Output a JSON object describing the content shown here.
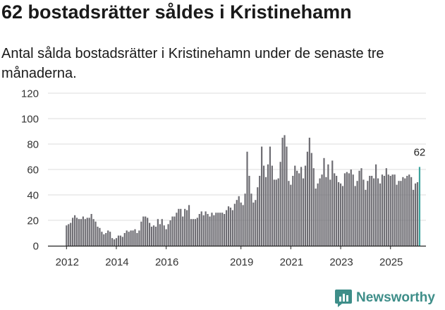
{
  "title": "62 bostadsrätter såldes i Kristinehamn",
  "subtitle": "Antal sålda bostadsrätter i Kristinehamn under de senaste tre månaderna.",
  "brand": {
    "name": "Newsworthy",
    "icon": "newsworthy-logo-icon",
    "color": "#3e8e89"
  },
  "chart_data": {
    "type": "bar",
    "title": "62 bostadsrätter såldes i Kristinehamn",
    "xlabel": "",
    "ylabel": "",
    "ylim": [
      0,
      120
    ],
    "yticks": [
      0,
      20,
      40,
      60,
      80,
      100,
      120
    ],
    "xtick_labels": [
      "2012",
      "2014",
      "2016",
      "2019",
      "2021",
      "2023",
      "2025"
    ],
    "x_start": "2012-01",
    "bar_color": "#6e6d73",
    "highlight_color": "#3ca39d",
    "highlight_label": "62",
    "grid": true,
    "values": [
      16,
      17,
      18,
      22,
      24,
      22,
      21,
      21,
      23,
      21,
      22,
      22,
      25,
      21,
      19,
      15,
      14,
      11,
      9,
      10,
      12,
      11,
      6,
      5,
      6,
      8,
      8,
      7,
      10,
      12,
      11,
      12,
      12,
      13,
      10,
      12,
      19,
      23,
      23,
      22,
      18,
      15,
      16,
      15,
      21,
      17,
      21,
      16,
      13,
      17,
      20,
      23,
      23,
      26,
      29,
      29,
      23,
      29,
      28,
      32,
      21,
      21,
      21,
      22,
      25,
      27,
      24,
      27,
      25,
      23,
      26,
      24,
      26,
      26,
      26,
      26,
      25,
      28,
      31,
      30,
      28,
      33,
      36,
      39,
      34,
      32,
      41,
      74,
      55,
      41,
      34,
      36,
      46,
      55,
      78,
      63,
      54,
      64,
      78,
      63,
      52,
      52,
      53,
      66,
      85,
      87,
      78,
      51,
      48,
      55,
      63,
      59,
      57,
      62,
      53,
      63,
      74,
      85,
      73,
      61,
      45,
      49,
      53,
      56,
      69,
      54,
      64,
      52,
      67,
      57,
      55,
      50,
      49,
      47,
      57,
      58,
      57,
      60,
      56,
      47,
      51,
      59,
      61,
      52,
      44,
      51,
      55,
      55,
      53,
      64,
      53,
      49,
      56,
      55,
      61,
      56,
      55,
      56,
      56,
      48,
      51,
      51,
      54,
      53,
      55,
      56,
      54,
      44,
      49,
      50,
      62
    ]
  }
}
